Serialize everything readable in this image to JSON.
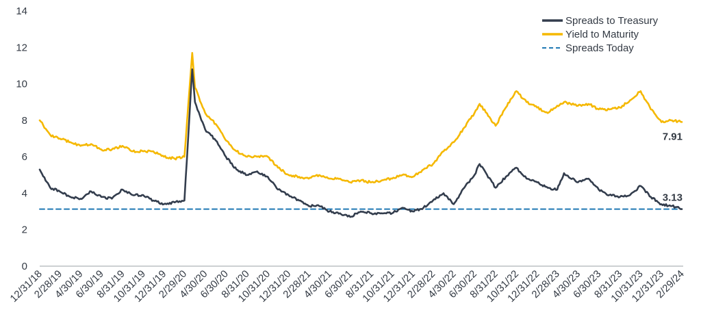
{
  "chart_data": {
    "type": "line",
    "title": "",
    "xlabel": "",
    "ylabel": "",
    "ylim": [
      0,
      14
    ],
    "y_ticks": [
      "0",
      "2",
      "4",
      "6",
      "8",
      "10",
      "12",
      "14"
    ],
    "x_ticks": [
      "12/31/18",
      "2/28/19",
      "4/30/19",
      "6/30/19",
      "8/31/19",
      "10/31/19",
      "12/31/19",
      "2/29/20",
      "4/30/20",
      "6/30/20",
      "8/31/20",
      "10/31/20",
      "12/31/20",
      "2/28/21",
      "4/30/21",
      "6/30/21",
      "8/31/21",
      "10/31/21",
      "12/31/21",
      "2/28/22",
      "4/30/22",
      "6/30/22",
      "8/31/22",
      "10/31/22",
      "12/31/22",
      "2/28/23",
      "4/30/23",
      "6/30/23",
      "8/31/23",
      "10/31/23",
      "12/31/23",
      "2/29/24"
    ],
    "grid": false,
    "legend_position": "top-right",
    "series": [
      {
        "name": "Spreads to Treasury",
        "color": "#333d4d",
        "style": "solid",
        "points": [
          [
            "12/31/18",
            5.3
          ],
          [
            "1/31/19",
            4.3
          ],
          [
            "2/28/19",
            4.1
          ],
          [
            "3/31/19",
            3.8
          ],
          [
            "4/30/19",
            3.7
          ],
          [
            "5/31/19",
            4.1
          ],
          [
            "6/30/19",
            3.8
          ],
          [
            "7/31/19",
            3.7
          ],
          [
            "8/31/19",
            4.2
          ],
          [
            "9/30/19",
            3.9
          ],
          [
            "10/31/19",
            3.9
          ],
          [
            "11/30/19",
            3.6
          ],
          [
            "12/31/19",
            3.4
          ],
          [
            "1/31/20",
            3.5
          ],
          [
            "2/29/20",
            3.6
          ],
          [
            "3/23/20",
            10.8
          ],
          [
            "3/31/20",
            9.0
          ],
          [
            "4/30/20",
            7.5
          ],
          [
            "5/31/20",
            6.9
          ],
          [
            "6/30/20",
            6.0
          ],
          [
            "7/31/20",
            5.3
          ],
          [
            "8/31/20",
            5.0
          ],
          [
            "9/30/20",
            5.2
          ],
          [
            "10/31/20",
            4.9
          ],
          [
            "11/30/20",
            4.2
          ],
          [
            "12/31/20",
            3.9
          ],
          [
            "1/31/21",
            3.6
          ],
          [
            "2/28/21",
            3.3
          ],
          [
            "3/31/21",
            3.3
          ],
          [
            "4/30/21",
            3.0
          ],
          [
            "5/31/21",
            2.9
          ],
          [
            "6/30/21",
            2.7
          ],
          [
            "7/31/21",
            3.0
          ],
          [
            "8/31/21",
            2.9
          ],
          [
            "9/30/21",
            2.9
          ],
          [
            "10/31/21",
            2.9
          ],
          [
            "11/30/21",
            3.2
          ],
          [
            "12/31/21",
            3.0
          ],
          [
            "1/31/22",
            3.2
          ],
          [
            "2/28/22",
            3.6
          ],
          [
            "3/31/22",
            4.0
          ],
          [
            "4/30/22",
            3.4
          ],
          [
            "5/31/22",
            4.3
          ],
          [
            "6/30/22",
            5.0
          ],
          [
            "7/15/22",
            5.6
          ],
          [
            "8/31/22",
            4.3
          ],
          [
            "9/30/22",
            4.9
          ],
          [
            "10/31/22",
            5.4
          ],
          [
            "11/30/22",
            4.8
          ],
          [
            "12/31/22",
            4.6
          ],
          [
            "1/31/23",
            4.3
          ],
          [
            "2/28/23",
            4.2
          ],
          [
            "3/20/23",
            5.1
          ],
          [
            "4/30/23",
            4.6
          ],
          [
            "5/31/23",
            4.8
          ],
          [
            "6/30/23",
            4.2
          ],
          [
            "7/31/23",
            3.9
          ],
          [
            "8/31/23",
            3.8
          ],
          [
            "9/30/23",
            3.9
          ],
          [
            "10/31/23",
            4.4
          ],
          [
            "11/30/23",
            3.8
          ],
          [
            "12/31/23",
            3.4
          ],
          [
            "1/31/24",
            3.3
          ],
          [
            "2/29/24",
            3.13
          ]
        ]
      },
      {
        "name": "Yield to Maturity",
        "color": "#f5b800",
        "style": "solid",
        "points": [
          [
            "12/31/18",
            8.0
          ],
          [
            "1/31/19",
            7.2
          ],
          [
            "2/28/19",
            7.0
          ],
          [
            "3/31/19",
            6.8
          ],
          [
            "4/30/19",
            6.6
          ],
          [
            "5/31/19",
            6.7
          ],
          [
            "6/30/19",
            6.4
          ],
          [
            "7/31/19",
            6.4
          ],
          [
            "8/31/19",
            6.6
          ],
          [
            "9/30/19",
            6.3
          ],
          [
            "10/31/19",
            6.3
          ],
          [
            "11/30/19",
            6.3
          ],
          [
            "12/31/19",
            6.0
          ],
          [
            "1/31/20",
            5.9
          ],
          [
            "2/29/20",
            6.0
          ],
          [
            "3/23/20",
            11.7
          ],
          [
            "3/31/20",
            9.8
          ],
          [
            "4/30/20",
            8.4
          ],
          [
            "5/31/20",
            7.8
          ],
          [
            "6/30/20",
            6.9
          ],
          [
            "7/31/20",
            6.3
          ],
          [
            "8/31/20",
            6.0
          ],
          [
            "9/30/20",
            6.0
          ],
          [
            "10/31/20",
            6.0
          ],
          [
            "11/30/20",
            5.4
          ],
          [
            "12/31/20",
            5.0
          ],
          [
            "1/31/21",
            4.9
          ],
          [
            "2/28/21",
            4.8
          ],
          [
            "3/31/21",
            5.0
          ],
          [
            "4/30/21",
            4.8
          ],
          [
            "5/31/21",
            4.8
          ],
          [
            "6/30/21",
            4.6
          ],
          [
            "7/31/21",
            4.7
          ],
          [
            "8/31/21",
            4.6
          ],
          [
            "9/30/21",
            4.7
          ],
          [
            "10/31/21",
            4.8
          ],
          [
            "11/30/21",
            5.0
          ],
          [
            "12/31/21",
            4.9
          ],
          [
            "1/31/22",
            5.3
          ],
          [
            "2/28/22",
            5.6
          ],
          [
            "3/31/22",
            6.3
          ],
          [
            "4/30/22",
            6.8
          ],
          [
            "5/31/22",
            7.6
          ],
          [
            "6/30/22",
            8.4
          ],
          [
            "7/15/22",
            8.9
          ],
          [
            "8/31/22",
            7.7
          ],
          [
            "9/30/22",
            8.7
          ],
          [
            "10/31/22",
            9.6
          ],
          [
            "11/30/22",
            9.0
          ],
          [
            "12/31/22",
            8.7
          ],
          [
            "1/31/23",
            8.4
          ],
          [
            "2/28/23",
            8.8
          ],
          [
            "3/20/23",
            9.0
          ],
          [
            "4/30/23",
            8.8
          ],
          [
            "5/31/23",
            8.9
          ],
          [
            "6/30/23",
            8.6
          ],
          [
            "7/31/23",
            8.6
          ],
          [
            "8/31/23",
            8.7
          ],
          [
            "9/30/23",
            9.1
          ],
          [
            "10/31/23",
            9.6
          ],
          [
            "11/30/23",
            8.6
          ],
          [
            "12/31/23",
            7.9
          ],
          [
            "1/31/24",
            8.0
          ],
          [
            "2/29/24",
            7.91
          ]
        ]
      },
      {
        "name": "Spreads Today",
        "color": "#1f78b4",
        "style": "dashed",
        "points": [
          [
            "12/31/18",
            3.13
          ],
          [
            "2/29/24",
            3.13
          ]
        ]
      }
    ],
    "annotations": [
      {
        "text": "7.91",
        "series": "Yield to Maturity",
        "x": "2/29/24",
        "y": 7.91
      },
      {
        "text": "3.13",
        "series": "Spreads to Treasury",
        "x": "2/29/24",
        "y": 3.13
      }
    ]
  }
}
